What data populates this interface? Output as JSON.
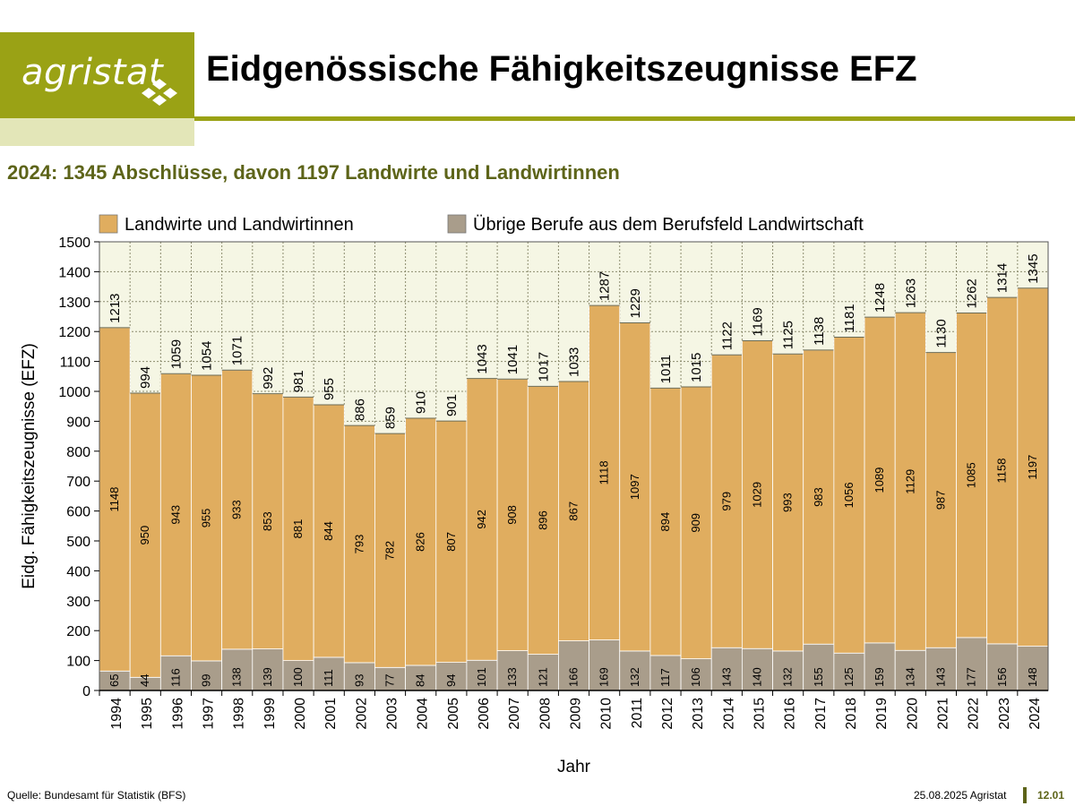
{
  "header": {
    "logo_text": "agristat",
    "title": "Eidgenössische Fähigkeitszeugnisse EFZ",
    "subtitle": "2024: 1345 Abschlüsse, davon 1197 Landwirte und Landwirtinnen"
  },
  "footer": {
    "source": "Quelle: Bundesamt für Statistik (BFS)",
    "date_credit": "25.08.2025 Agristat",
    "page_number": "12.01"
  },
  "colors": {
    "brand": "#9aa215",
    "brand_light": "#e3e6b8",
    "subtitle": "#5d6419",
    "landwirte": "#e0ad5f",
    "uebrige": "#a99d8b",
    "plot_bg": "#f5f6e4"
  },
  "chart_data": {
    "type": "bar",
    "stacked": true,
    "title": "",
    "xlabel": "Jahr",
    "ylabel": "Eidg. Fähigkeitszeugnisse (EFZ)",
    "ylim": [
      0,
      1500
    ],
    "yticks": [
      0,
      100,
      200,
      300,
      400,
      500,
      600,
      700,
      800,
      900,
      1000,
      1100,
      1200,
      1300,
      1400,
      1500
    ],
    "grid": true,
    "legend_position": "top",
    "categories": [
      "1994",
      "1995",
      "1996",
      "1997",
      "1998",
      "1999",
      "2000",
      "2001",
      "2002",
      "2003",
      "2004",
      "2005",
      "2006",
      "2007",
      "2008",
      "2009",
      "2010",
      "2011",
      "2012",
      "2013",
      "2014",
      "2015",
      "2016",
      "2017",
      "2018",
      "2019",
      "2020",
      "2021",
      "2022",
      "2023",
      "2024"
    ],
    "series": [
      {
        "name": "Übrige Berufe aus dem Berufsfeld Landwirtschaft",
        "color": "#a99d8b",
        "values": [
          65,
          44,
          116,
          99,
          138,
          139,
          100,
          111,
          93,
          77,
          84,
          94,
          101,
          133,
          121,
          166,
          169,
          132,
          117,
          106,
          143,
          140,
          132,
          155,
          125,
          159,
          134,
          143,
          177,
          156,
          148
        ]
      },
      {
        "name": "Landwirte und Landwirtinnen",
        "color": "#e0ad5f",
        "values": [
          1148,
          950,
          943,
          955,
          933,
          853,
          881,
          844,
          793,
          782,
          826,
          807,
          942,
          908,
          896,
          867,
          1118,
          1097,
          894,
          909,
          979,
          1029,
          993,
          983,
          1056,
          1089,
          1129,
          987,
          1085,
          1158,
          1197
        ]
      }
    ],
    "totals": [
      1213,
      994,
      1059,
      1054,
      1071,
      992,
      981,
      955,
      886,
      859,
      910,
      901,
      1043,
      1041,
      1017,
      1033,
      1287,
      1229,
      1011,
      1015,
      1122,
      1169,
      1125,
      1138,
      1181,
      1248,
      1263,
      1130,
      1262,
      1314,
      1345
    ],
    "legend": [
      {
        "label": "Landwirte und Landwirtinnen",
        "color": "#e0ad5f"
      },
      {
        "label": "Übrige Berufe aus dem Berufsfeld Landwirtschaft",
        "color": "#a99d8b"
      }
    ]
  }
}
